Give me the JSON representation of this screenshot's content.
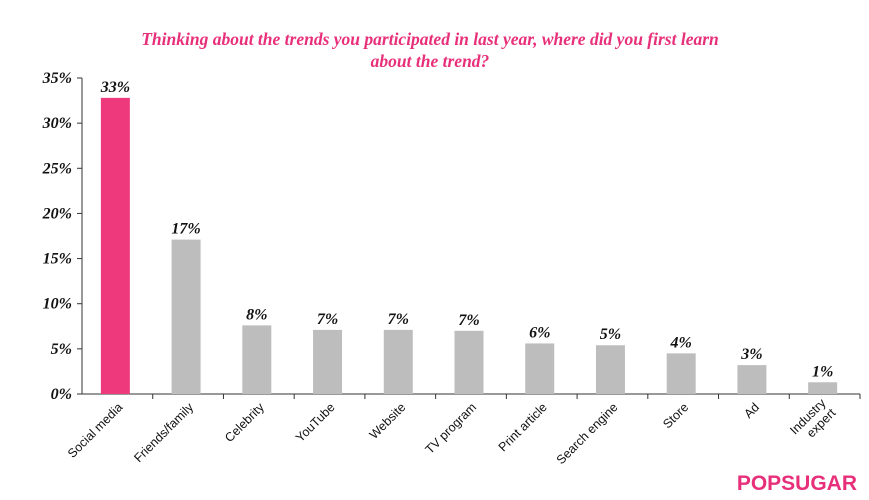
{
  "chart_data": {
    "type": "bar",
    "title": "Thinking about the trends you participated in last year, where did you first learn about the trend?",
    "categories": [
      "Social media",
      "Friends/family",
      "Celebrity",
      "YouTube",
      "Website",
      "TV program",
      "Print article",
      "Search engine",
      "Store",
      "Ad",
      "Industry expert"
    ],
    "values": [
      32.8,
      17.1,
      7.6,
      7.1,
      7.1,
      7.0,
      5.6,
      5.4,
      4.5,
      3.2,
      1.3
    ],
    "data_labels": [
      "33%",
      "17%",
      "8%",
      "7%",
      "7%",
      "7%",
      "6%",
      "5%",
      "4%",
      "3%",
      "1%"
    ],
    "yticks": [
      0,
      5,
      10,
      15,
      20,
      25,
      30,
      35
    ],
    "ytick_labels": [
      "0%",
      "5%",
      "10%",
      "15%",
      "20%",
      "25%",
      "30%",
      "35%"
    ],
    "ylim": [
      0,
      35
    ],
    "xlabel": "",
    "ylabel": "",
    "grid": false,
    "colors": {
      "highlight": "#ee3a7d",
      "default": "#bdbdbd",
      "title": "#e8307a"
    },
    "highlight_index": 0
  },
  "branding": {
    "logo_text": "POPSUGAR"
  }
}
